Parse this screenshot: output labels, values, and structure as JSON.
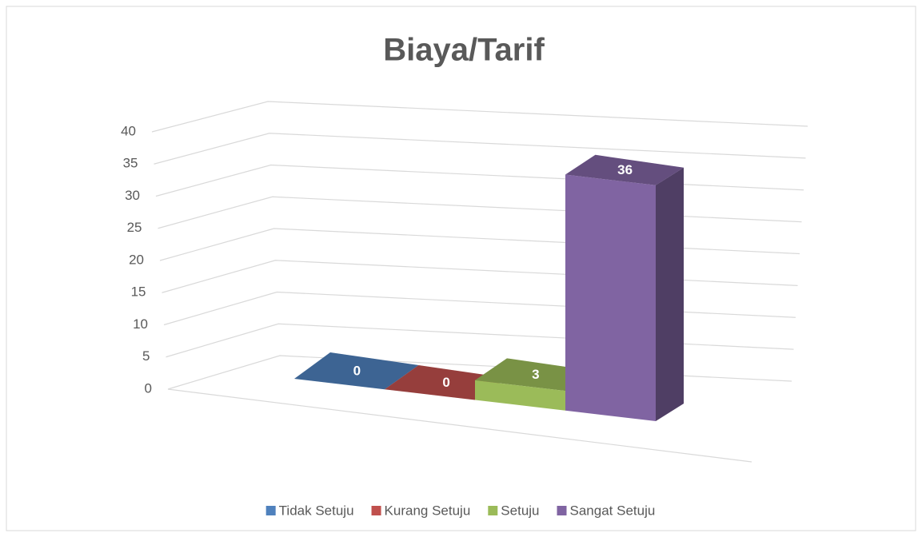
{
  "chart_data": {
    "type": "bar3d",
    "title": "Biaya/Tarif",
    "series": [
      {
        "name": "Tidak Setuju",
        "color": "#4f81bd",
        "values": [
          0
        ]
      },
      {
        "name": "Kurang Setuju",
        "color": "#c0504d",
        "values": [
          0
        ]
      },
      {
        "name": "Setuju",
        "color": "#9bbb59",
        "values": [
          3
        ]
      },
      {
        "name": "Sangat Setuju",
        "color": "#8064a2",
        "values": [
          36
        ]
      }
    ],
    "ylim": [
      0,
      40
    ],
    "yticks": [
      0,
      5,
      10,
      15,
      20,
      25,
      30,
      35,
      40
    ],
    "grid": true,
    "legend": "bottom"
  }
}
